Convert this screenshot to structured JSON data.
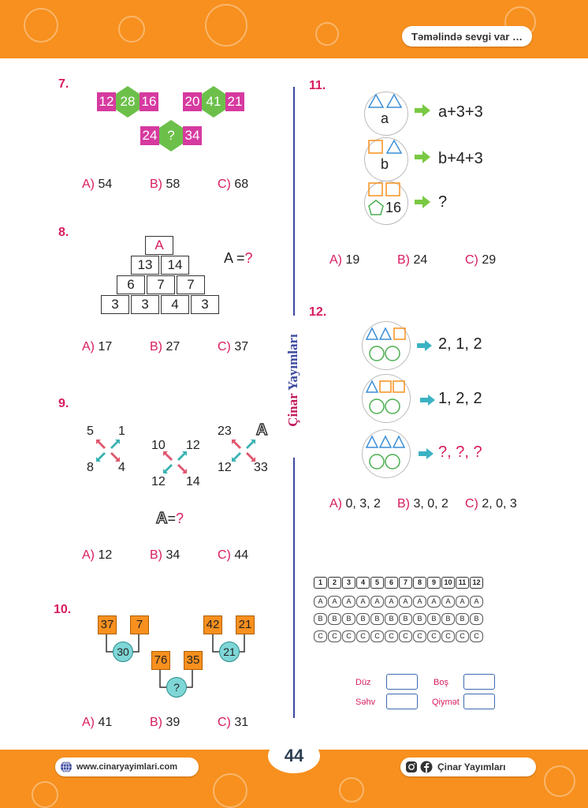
{
  "header": {
    "slogan": "Təməlində sevgi var …"
  },
  "brand": {
    "part1": "Çinar",
    "part2": "Yayımları"
  },
  "q7": {
    "number": "7.",
    "g1": {
      "left": "12",
      "center": "28",
      "right": "16"
    },
    "g2": {
      "left": "20",
      "center": "41",
      "right": "21"
    },
    "g3": {
      "left": "24",
      "center": "?",
      "right": "34"
    },
    "options": [
      {
        "letter": "A)",
        "value": "54"
      },
      {
        "letter": "B)",
        "value": "58"
      },
      {
        "letter": "C)",
        "value": "68"
      }
    ]
  },
  "q8": {
    "number": "8.",
    "rows": [
      [
        "A"
      ],
      [
        "13",
        "14"
      ],
      [
        "6",
        "7",
        "7"
      ],
      [
        "3",
        "3",
        "4",
        "3"
      ]
    ],
    "question_label": "A =",
    "question_mark": "?",
    "options": [
      {
        "letter": "A)",
        "value": "17"
      },
      {
        "letter": "B)",
        "value": "27"
      },
      {
        "letter": "C)",
        "value": "37"
      }
    ]
  },
  "q9": {
    "number": "9.",
    "c1": {
      "tl": "5",
      "tr": "1",
      "bl": "8",
      "br": "4"
    },
    "c2": {
      "tl": "10",
      "tr": "12",
      "bl": "12",
      "br": "14"
    },
    "c3": {
      "tl": "23",
      "tr": "A",
      "bl": "12",
      "br": "33"
    },
    "question_letter": "A",
    "question_eq": "=",
    "question_mark": "?",
    "options": [
      {
        "letter": "A)",
        "value": "12"
      },
      {
        "letter": "B)",
        "value": "34"
      },
      {
        "letter": "C)",
        "value": "44"
      }
    ]
  },
  "q10": {
    "number": "10.",
    "left": {
      "a": "37",
      "b": "7",
      "result": "30"
    },
    "right": {
      "a": "42",
      "b": "21",
      "result": "21"
    },
    "bottom": {
      "a": "76",
      "b": "35",
      "result": "?"
    },
    "options": [
      {
        "letter": "A)",
        "value": "41"
      },
      {
        "letter": "B)",
        "value": "39"
      },
      {
        "letter": "C)",
        "value": "31"
      }
    ]
  },
  "q11": {
    "number": "11.",
    "rows": [
      {
        "label": "a",
        "result": "a+3+3"
      },
      {
        "label": "b",
        "result": "b+4+3"
      },
      {
        "label": "16",
        "result": "?"
      }
    ],
    "options": [
      {
        "letter": "A)",
        "value": "19"
      },
      {
        "letter": "B)",
        "value": "24"
      },
      {
        "letter": "C)",
        "value": "29"
      }
    ]
  },
  "q12": {
    "number": "12.",
    "rows": [
      {
        "result": "2, 1, 2"
      },
      {
        "result": "1, 2, 2"
      },
      {
        "result": "?, ?, ?"
      }
    ],
    "options": [
      {
        "letter": "A)",
        "value": "0, 3, 2"
      },
      {
        "letter": "B)",
        "value": "3, 0, 2"
      },
      {
        "letter": "C)",
        "value": "2, 0, 3"
      }
    ]
  },
  "answer_grid": {
    "numbers": [
      "1",
      "2",
      "3",
      "4",
      "5",
      "6",
      "7",
      "8",
      "9",
      "10",
      "11",
      "12"
    ],
    "letters": [
      "A",
      "B",
      "C"
    ]
  },
  "score": {
    "correct": "Düz",
    "empty": "Boş",
    "wrong": "Səhv",
    "grade": "Qiymət"
  },
  "footer": {
    "page_number": "44",
    "website": "www.cinaryayimlari.com",
    "social": "Çinar Yayımları"
  },
  "colors": {
    "accent_orange": "#f7901e",
    "accent_pink": "#d81b60",
    "magenta_box": "#d63aa0",
    "hex_green": "#6cc04a",
    "divider_blue": "#3c4aa0",
    "teal": "#7fd6d6"
  }
}
